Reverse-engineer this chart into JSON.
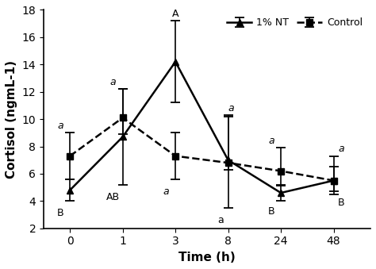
{
  "time_points": [
    0,
    1,
    3,
    8,
    24,
    48
  ],
  "x_positions": [
    0,
    1,
    2,
    3,
    4,
    5
  ],
  "nt_mean": [
    4.8,
    8.7,
    14.2,
    7.0,
    4.6,
    5.5
  ],
  "nt_err_upper": [
    0.8,
    3.5,
    3.0,
    3.2,
    0.55,
    1.0
  ],
  "nt_err_lower": [
    0.8,
    3.5,
    3.0,
    3.5,
    0.55,
    0.8
  ],
  "ctrl_mean": [
    7.3,
    10.1,
    7.3,
    6.8,
    6.2,
    5.5
  ],
  "ctrl_err_upper": [
    1.7,
    2.1,
    1.7,
    3.5,
    1.7,
    1.8
  ],
  "ctrl_err_lower": [
    1.7,
    1.2,
    1.7,
    0.5,
    1.0,
    1.0
  ],
  "nt_labels": [
    "B",
    "AB",
    "A",
    "a",
    "B",
    "B"
  ],
  "ctrl_labels": [
    "a",
    "a",
    "a",
    "a",
    "a",
    "a"
  ],
  "ylabel": "Cortisol (ngmL-1)",
  "xlabel": "Time (h)",
  "ylim": [
    2,
    18
  ],
  "yticks": [
    2,
    4,
    6,
    8,
    10,
    12,
    14,
    16,
    18
  ],
  "xtick_labels": [
    "0",
    "1",
    "3",
    "8",
    "24",
    "48"
  ],
  "legend_labels": [
    "1% NT",
    "Control"
  ],
  "line_color": "#000000"
}
